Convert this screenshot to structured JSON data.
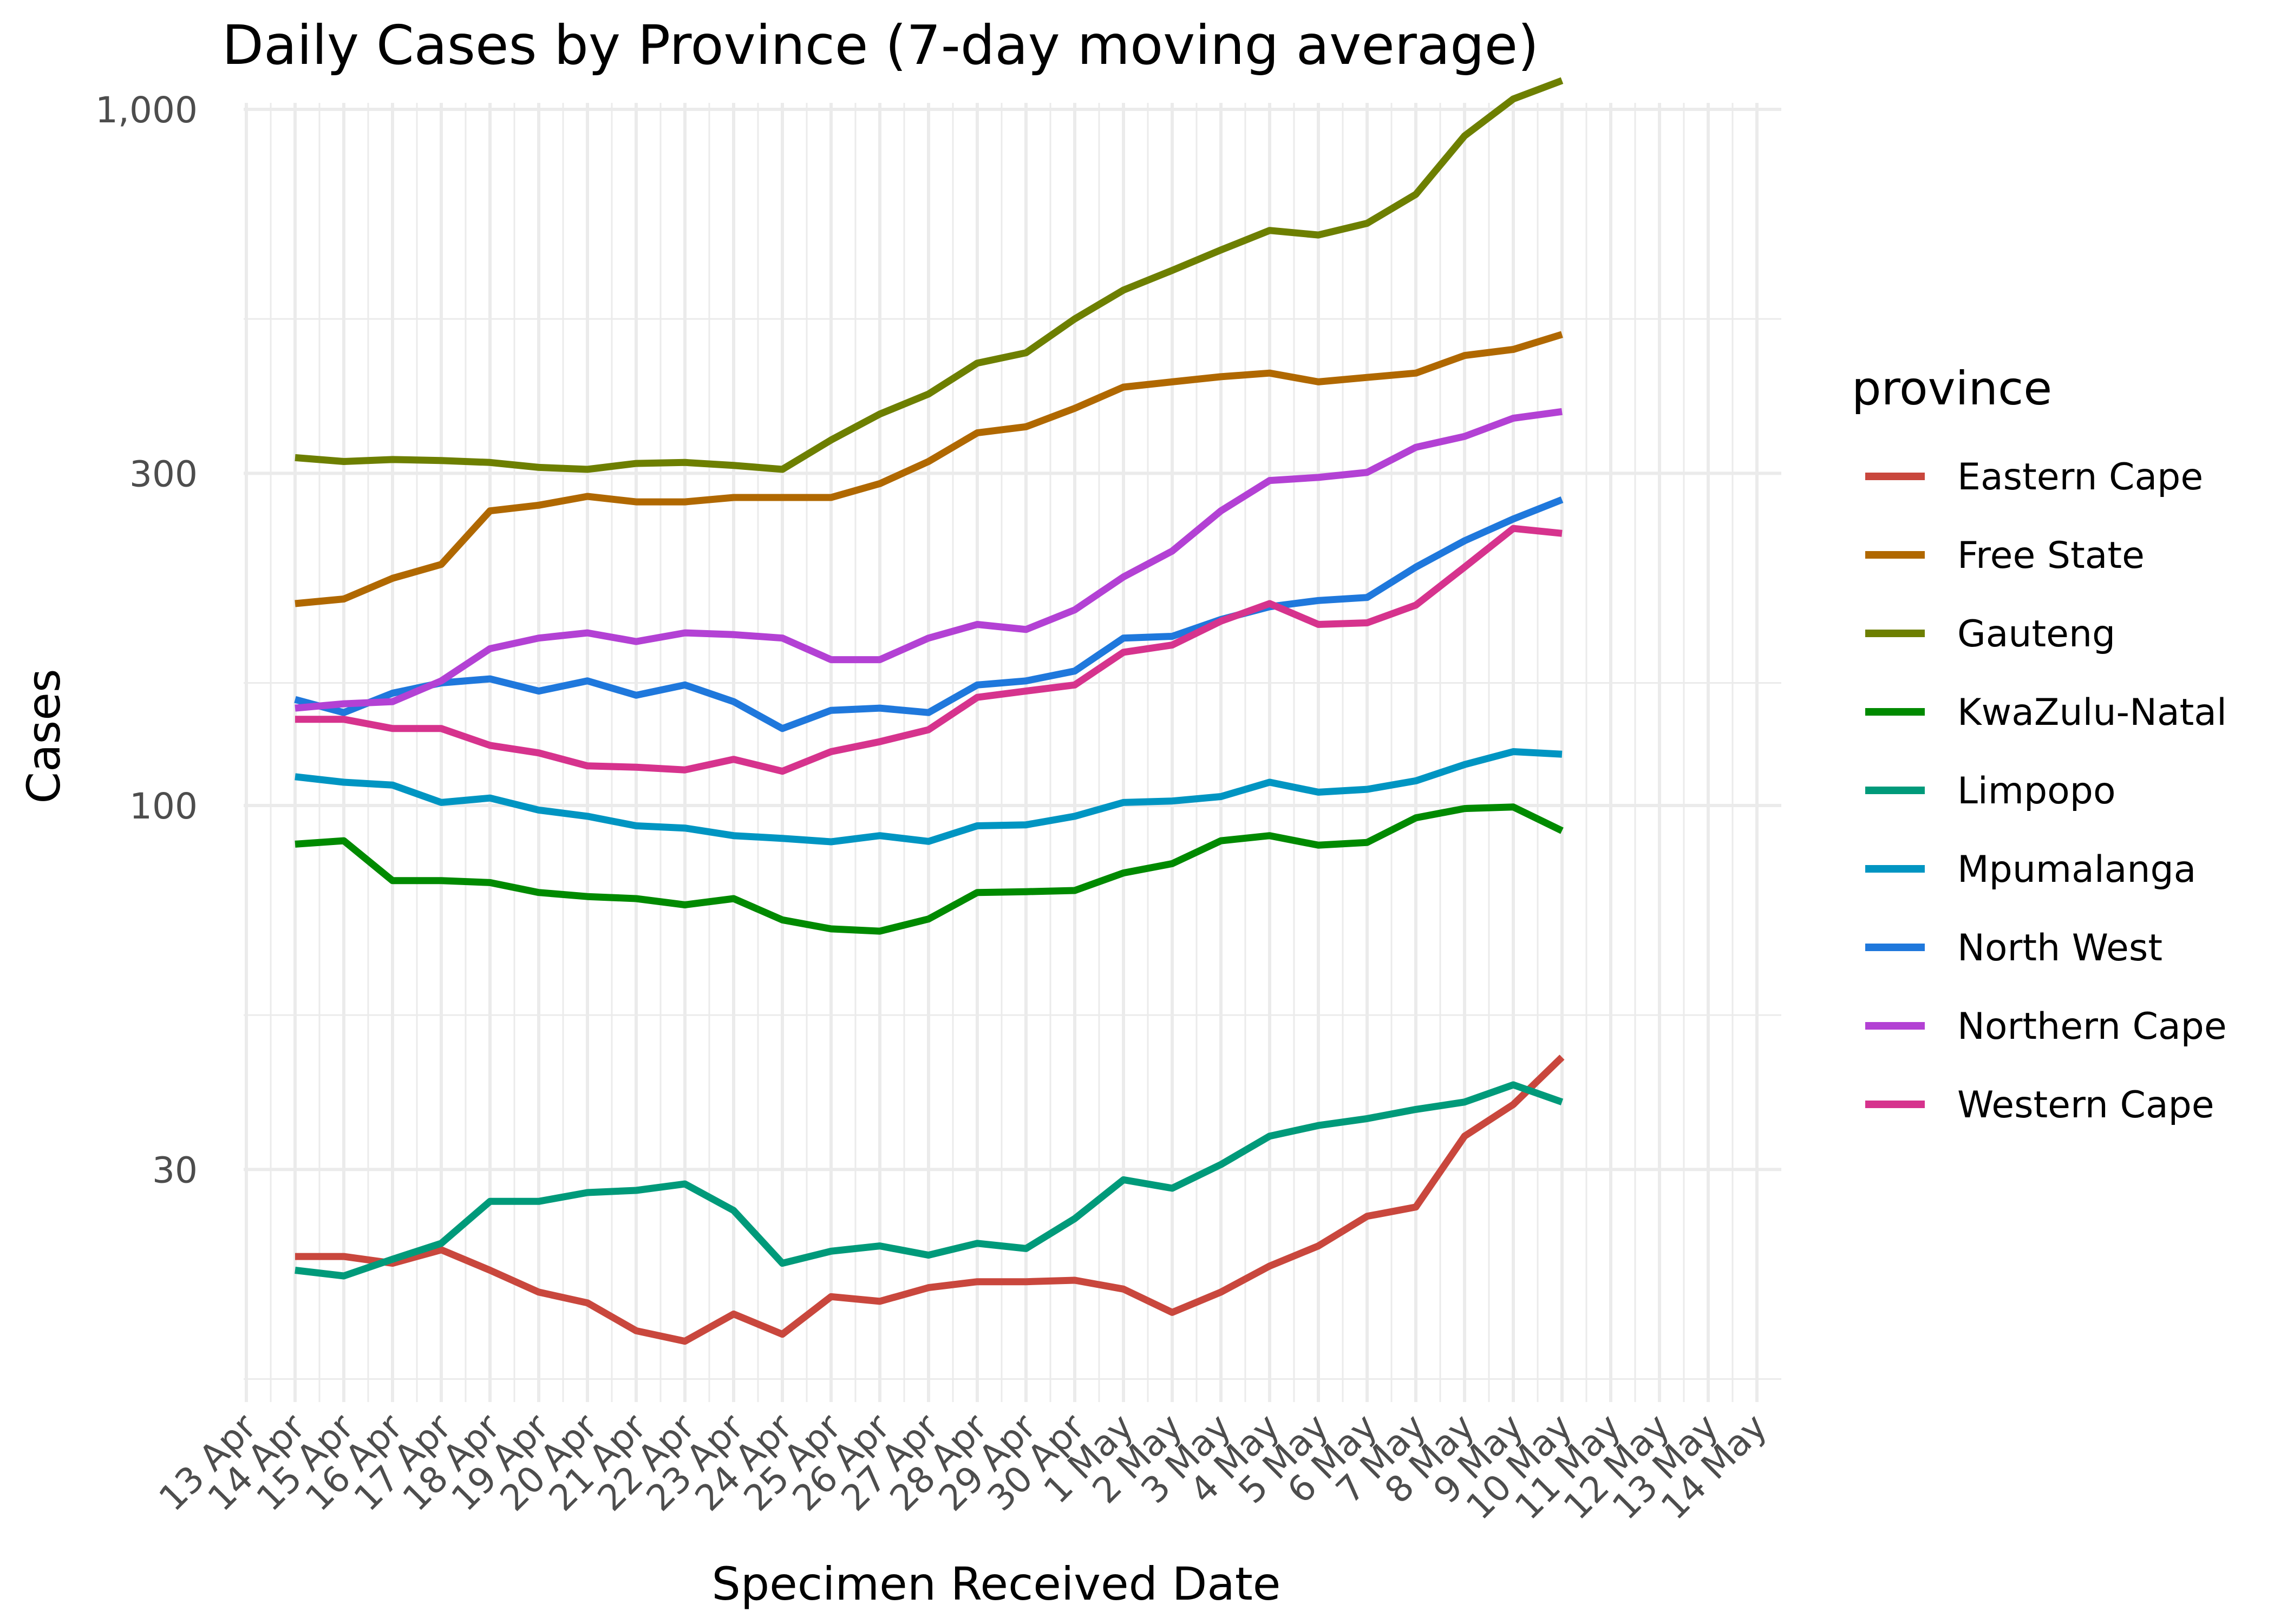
{
  "chart_data": {
    "type": "line",
    "title": "Daily Cases by Province (7-day moving average)",
    "xlabel": "Specimen Received Date",
    "ylabel": "Cases",
    "y_scale": "log10",
    "ylim": [
      13,
      1000
    ],
    "y_ticks": [
      30,
      100,
      300,
      1000
    ],
    "y_tick_labels": [
      "30",
      "100",
      "300",
      "1,000"
    ],
    "y_minor_ticks": [
      15,
      50,
      150,
      500
    ],
    "x_tick_labels": [
      "13 Apr",
      "14 Apr",
      "15 Apr",
      "16 Apr",
      "17 Apr",
      "18 Apr",
      "19 Apr",
      "20 Apr",
      "21 Apr",
      "22 Apr",
      "23 Apr",
      "24 Apr",
      "25 Apr",
      "26 Apr",
      "27 Apr",
      "28 Apr",
      "29 Apr",
      "30 Apr",
      "1 May",
      "2 May",
      "3 May",
      "4 May",
      "5 May",
      "6 May",
      "7 May",
      "8 May",
      "9 May",
      "10 May",
      "11 May",
      "12 May",
      "13 May",
      "14 May"
    ],
    "x": [
      "14 Apr",
      "15 Apr",
      "16 Apr",
      "17 Apr",
      "18 Apr",
      "19 Apr",
      "20 Apr",
      "21 Apr",
      "22 Apr",
      "23 Apr",
      "24 Apr",
      "25 Apr",
      "26 Apr",
      "27 Apr",
      "28 Apr",
      "29 Apr",
      "30 Apr",
      "1 May",
      "2 May",
      "3 May",
      "4 May",
      "5 May",
      "6 May",
      "7 May",
      "8 May",
      "9 May",
      "10 May"
    ],
    "grid": true,
    "legend_title": "province",
    "legend_position": "right",
    "series": [
      {
        "name": "Eastern Cape",
        "color": "#c9473d",
        "values": [
          22.5,
          22.5,
          22.0,
          23.0,
          21.5,
          20.0,
          19.3,
          17.6,
          17.0,
          18.6,
          17.4,
          19.7,
          19.4,
          20.3,
          20.7,
          20.7,
          20.8,
          20.2,
          18.7,
          20.0,
          21.8,
          23.3,
          25.7,
          26.5,
          33.5,
          37.2,
          43.5
        ]
      },
      {
        "name": "Free State",
        "color": "#b06800",
        "values": [
          195,
          198,
          212,
          222,
          265,
          270,
          278,
          273,
          273,
          277,
          277,
          277,
          290,
          312,
          343,
          350,
          372,
          399,
          406,
          413,
          418,
          406,
          412,
          418,
          443,
          452,
          475
        ]
      },
      {
        "name": "Gauteng",
        "color": "#6d7f00",
        "values": [
          316,
          312,
          314,
          313,
          311,
          306,
          304,
          310,
          311,
          308,
          304,
          335,
          365,
          390,
          432,
          447,
          500,
          550,
          587,
          628,
          670,
          660,
          686,
          755,
          916,
          1035,
          1100
        ]
      },
      {
        "name": "KwaZulu-Natal",
        "color": "#008a00",
        "values": [
          88,
          89,
          78,
          78,
          77.5,
          75,
          74,
          73.5,
          72,
          73.5,
          68.5,
          66.5,
          66,
          68.7,
          75,
          75.2,
          75.5,
          80,
          82.5,
          89,
          90.5,
          87.7,
          88.5,
          96,
          99,
          99.5,
          92
        ]
      },
      {
        "name": "Limpopo",
        "color": "#009a7a",
        "values": [
          21.5,
          21.1,
          22.3,
          23.5,
          27,
          27,
          27.8,
          28,
          28.6,
          26.2,
          22.0,
          22.9,
          23.3,
          22.6,
          23.5,
          23.1,
          25.5,
          29,
          28.2,
          30.5,
          33.5,
          34.7,
          35.5,
          36.6,
          37.5,
          39.7,
          37.5
        ]
      },
      {
        "name": "Mpumalanga",
        "color": "#0095c2",
        "values": [
          110,
          108,
          107,
          101,
          102.5,
          98.5,
          96.5,
          93.5,
          92.8,
          90.5,
          89.7,
          88.7,
          90.5,
          88.8,
          93.5,
          93.8,
          96.5,
          101,
          101.5,
          103,
          108,
          104.5,
          105.5,
          108.5,
          114.5,
          119.5,
          118.5
        ]
      },
      {
        "name": "North West",
        "color": "#1f78dc",
        "values": [
          142,
          136,
          145,
          150,
          152,
          146,
          151,
          144,
          149,
          141,
          129,
          137,
          138,
          136,
          149,
          151,
          156,
          174,
          175,
          185,
          193,
          197,
          199,
          220,
          240,
          258,
          275
        ]
      },
      {
        "name": "Northern Cape",
        "color": "#b341d4",
        "values": [
          138,
          140,
          141,
          151,
          168,
          174,
          177,
          172,
          177,
          176,
          174,
          162,
          162,
          174,
          182,
          179,
          191,
          213,
          232,
          265,
          293,
          296,
          301,
          327,
          339,
          360,
          368
        ]
      },
      {
        "name": "Western Cape",
        "color": "#d6338d",
        "values": [
          133,
          133,
          129,
          129,
          122,
          119,
          114,
          113.5,
          112.5,
          116.5,
          112,
          119.5,
          123.5,
          128.5,
          143,
          146,
          149,
          166,
          170,
          184,
          195,
          182,
          183,
          194,
          220,
          250,
          246
        ]
      }
    ]
  }
}
